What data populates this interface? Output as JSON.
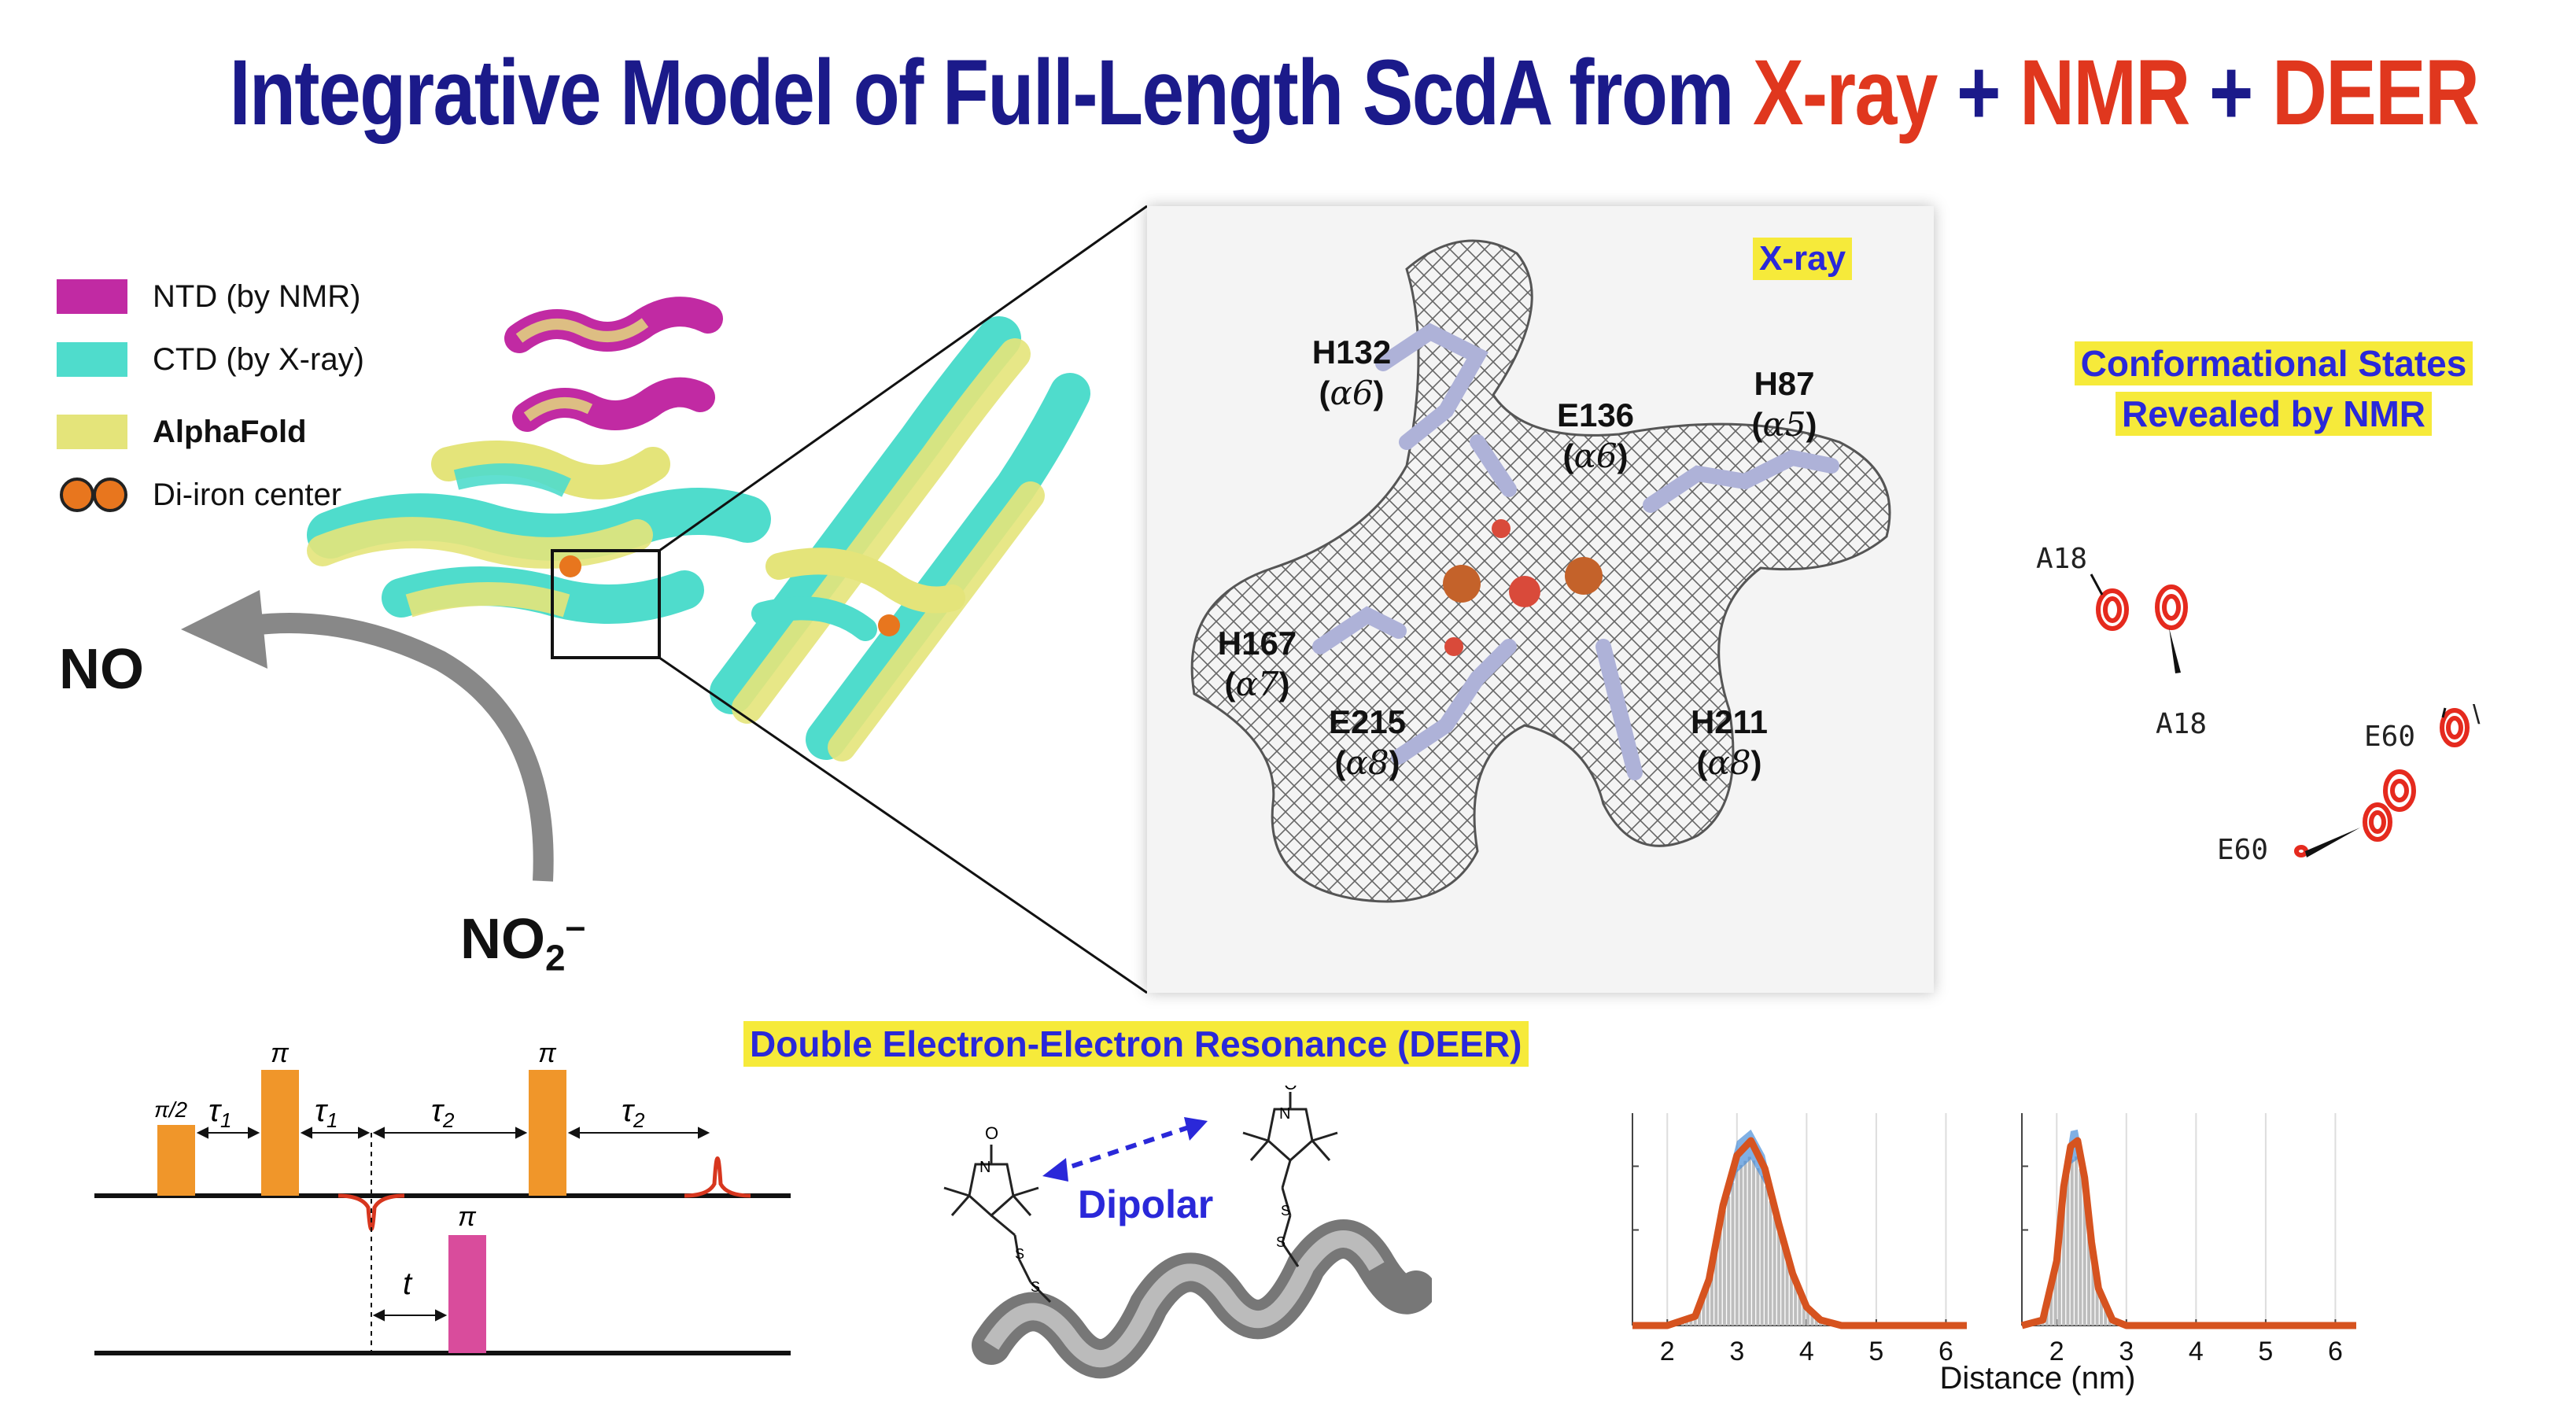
{
  "title": {
    "part1": "Integrative Model of Full-Length ScdA from ",
    "xray": "X-ray",
    "plus1": " + ",
    "nmr": "NMR",
    "plus2": " + ",
    "deer": "DEER"
  },
  "legend": [
    {
      "label": "NTD (by NMR)",
      "color": "#c12aa3"
    },
    {
      "label": "CTD (by X-ray)",
      "color": "#4fdccc"
    },
    {
      "label": "AlphaFold",
      "color": "#e4e47a",
      "bold": true
    },
    {
      "label": "Di-iron center",
      "color": "#e8761e"
    }
  ],
  "structure_labels": {
    "no": "NO",
    "no2_main": "NO",
    "no2_sub": "2",
    "no2_sup": "–"
  },
  "xray_panel": {
    "tag": "X-ray",
    "residues": [
      {
        "name": "H132",
        "helix": "α6"
      },
      {
        "name": "E136",
        "helix": "α6"
      },
      {
        "name": "H87",
        "helix": "α5"
      },
      {
        "name": "H167",
        "helix": "α7"
      },
      {
        "name": "E215",
        "helix": "α8"
      },
      {
        "name": "H211",
        "helix": "α8"
      }
    ]
  },
  "nmr_panel": {
    "title_line1": "Conformational States",
    "title_line2": "Revealed by NMR",
    "peak_labels": [
      "A18",
      "A18",
      "E60",
      "E60"
    ]
  },
  "deer_panel": {
    "title": "Double Electron-Electron Resonance (DEER)",
    "dipolar": "Dipolar",
    "pulse_labels": {
      "pi_half": "π/2",
      "pi": "π",
      "tau1": "τ",
      "tau1_sub": "1",
      "tau2": "τ",
      "tau2_sub": "2",
      "t": "t"
    }
  },
  "chart_data": [
    {
      "type": "line",
      "xlabel": "Distance (nm)",
      "xlim": [
        1.5,
        6.3
      ],
      "xticks": [
        "2",
        "3",
        "4",
        "5",
        "6"
      ],
      "grid": true,
      "series": [
        {
          "color": "#d6531f",
          "x": [
            1.5,
            2.0,
            2.4,
            2.6,
            2.8,
            3.0,
            3.2,
            3.4,
            3.6,
            3.8,
            4.0,
            4.2,
            4.5,
            5.0,
            6.3
          ],
          "y": [
            0,
            0.0,
            0.05,
            0.25,
            0.65,
            0.92,
            1.0,
            0.85,
            0.55,
            0.28,
            0.1,
            0.03,
            0,
            0,
            0
          ]
        }
      ]
    },
    {
      "type": "line",
      "xlabel": "Distance (nm)",
      "xlim": [
        1.5,
        6.3
      ],
      "xticks": [
        "2",
        "3",
        "4",
        "5",
        "6"
      ],
      "grid": true,
      "series": [
        {
          "color": "#d6531f",
          "x": [
            1.5,
            1.8,
            2.0,
            2.1,
            2.2,
            2.3,
            2.4,
            2.5,
            2.6,
            2.8,
            3.0,
            3.5,
            6.3
          ],
          "y": [
            0,
            0.03,
            0.35,
            0.75,
            0.97,
            1.0,
            0.8,
            0.45,
            0.2,
            0.03,
            0,
            0,
            0
          ]
        }
      ]
    }
  ]
}
